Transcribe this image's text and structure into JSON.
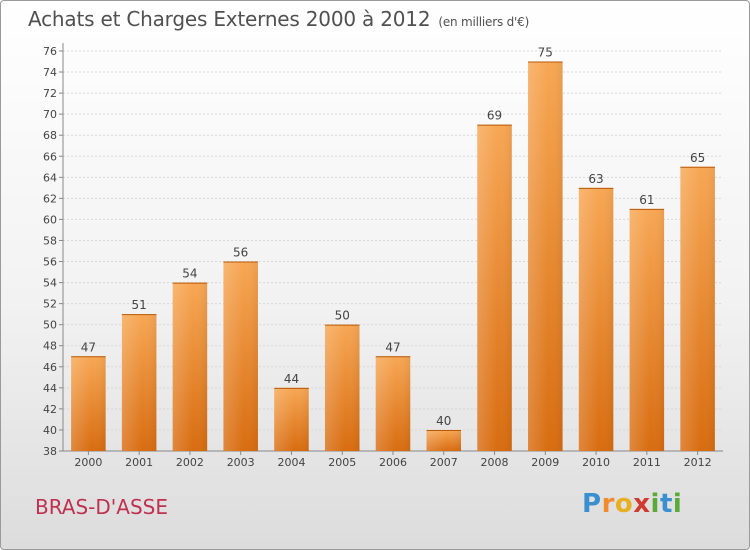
{
  "chart_data": {
    "type": "bar",
    "title": "Achats et Charges Externes 2000 à 2012",
    "unit": "(en milliers d'€)",
    "categories": [
      "2000",
      "2001",
      "2002",
      "2003",
      "2004",
      "2005",
      "2006",
      "2007",
      "2008",
      "2009",
      "2010",
      "2011",
      "2012"
    ],
    "values": [
      47,
      51,
      54,
      56,
      44,
      50,
      47,
      40,
      69,
      75,
      63,
      61,
      65
    ],
    "ylim": [
      38,
      76
    ],
    "yticks": [
      38,
      40,
      42,
      44,
      46,
      48,
      50,
      52,
      54,
      56,
      58,
      60,
      62,
      64,
      66,
      68,
      70,
      72,
      74,
      76
    ],
    "grid": true,
    "bar_color": "#f08c2e"
  },
  "commune": "BRAS-D'ASSE",
  "logo": {
    "letters": [
      "P",
      "r",
      "o",
      "x",
      "i",
      "t",
      "i"
    ],
    "colors": [
      "#3a8fd0",
      "#f08c2e",
      "#e8b020",
      "#d03a30",
      "#5aaa3a",
      "#3a8fd0",
      "#5aaa3a"
    ]
  }
}
